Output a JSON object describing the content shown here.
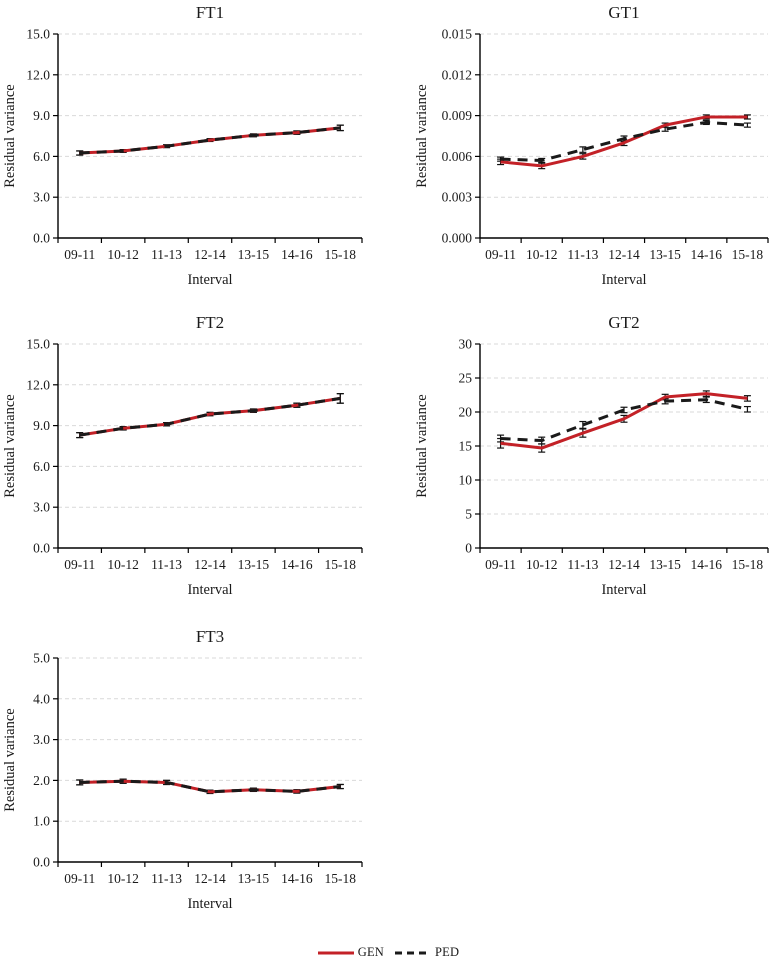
{
  "legend": {
    "items": [
      {
        "label": "GEN",
        "color": "#c32127",
        "style": "solid"
      },
      {
        "label": "PED",
        "color": "#1a1a1a",
        "style": "dashed"
      }
    ]
  },
  "chart_data": [
    {
      "id": "FT1",
      "type": "line",
      "title": "FT1",
      "xlabel": "Interval",
      "ylabel": "Residual variance",
      "categories": [
        "09-11",
        "10-12",
        "11-13",
        "12-14",
        "13-15",
        "14-16",
        "15-18"
      ],
      "ylim": [
        0,
        15
      ],
      "grid": "dashed-horizontal",
      "legend_position": "figure-bottom",
      "yticks": [
        {
          "v": 0,
          "label": "0.0"
        },
        {
          "v": 3,
          "label": "3.0"
        },
        {
          "v": 6,
          "label": "6.0"
        },
        {
          "v": 9,
          "label": "9.0"
        },
        {
          "v": 12,
          "label": "12.0"
        },
        {
          "v": 15,
          "label": "15.0"
        }
      ],
      "series": [
        {
          "name": "GEN",
          "color": "#c32127",
          "dash": "solid",
          "values": [
            6.25,
            6.4,
            6.75,
            7.2,
            7.55,
            7.75,
            8.1
          ],
          "errors": [
            0.15,
            0.1,
            0.1,
            0.1,
            0.1,
            0.12,
            0.2
          ]
        },
        {
          "name": "PED",
          "color": "#1a1a1a",
          "dash": "dashed",
          "values": [
            6.25,
            6.4,
            6.75,
            7.2,
            7.55,
            7.75,
            8.1
          ],
          "errors": [
            0.15,
            0.1,
            0.1,
            0.1,
            0.1,
            0.12,
            0.2
          ]
        }
      ]
    },
    {
      "id": "GT1",
      "type": "line",
      "title": "GT1",
      "xlabel": "Interval",
      "ylabel": "Residual variance",
      "categories": [
        "09-11",
        "10-12",
        "11-13",
        "12-14",
        "13-15",
        "14-16",
        "15-18"
      ],
      "ylim": [
        0,
        0.015
      ],
      "grid": "dashed-horizontal",
      "legend_position": "figure-bottom",
      "yticks": [
        {
          "v": 0,
          "label": "0.000"
        },
        {
          "v": 0.003,
          "label": "0.003"
        },
        {
          "v": 0.006,
          "label": "0.006"
        },
        {
          "v": 0.009,
          "label": "0.009"
        },
        {
          "v": 0.012,
          "label": "0.012"
        },
        {
          "v": 0.015,
          "label": "0.015"
        }
      ],
      "series": [
        {
          "name": "GEN",
          "color": "#c32127",
          "dash": "solid",
          "values": [
            0.0056,
            0.0053,
            0.006,
            0.007,
            0.0083,
            0.0089,
            0.0089
          ],
          "errors": [
            0.0002,
            0.0002,
            0.0002,
            0.0002,
            0.00015,
            0.00015,
            0.00015
          ]
        },
        {
          "name": "PED",
          "color": "#1a1a1a",
          "dash": "dashed",
          "values": [
            0.0058,
            0.0057,
            0.0065,
            0.0073,
            0.008,
            0.0085,
            0.0083
          ],
          "errors": [
            0.00015,
            0.00015,
            0.0002,
            0.0002,
            0.00015,
            0.00015,
            0.00015
          ]
        }
      ]
    },
    {
      "id": "FT2",
      "type": "line",
      "title": "FT2",
      "xlabel": "Interval",
      "ylabel": "Residual variance",
      "categories": [
        "09-11",
        "10-12",
        "11-13",
        "12-14",
        "13-15",
        "14-16",
        "15-18"
      ],
      "ylim": [
        0,
        15
      ],
      "grid": "dashed-horizontal",
      "legend_position": "figure-bottom",
      "yticks": [
        {
          "v": 0,
          "label": "0.0"
        },
        {
          "v": 3,
          "label": "3.0"
        },
        {
          "v": 6,
          "label": "6.0"
        },
        {
          "v": 9,
          "label": "9.0"
        },
        {
          "v": 12,
          "label": "12.0"
        },
        {
          "v": 15,
          "label": "15.0"
        }
      ],
      "series": [
        {
          "name": "GEN",
          "color": "#c32127",
          "dash": "solid",
          "values": [
            8.3,
            8.8,
            9.1,
            9.85,
            10.1,
            10.5,
            11.0
          ],
          "errors": [
            0.18,
            0.12,
            0.12,
            0.12,
            0.12,
            0.15,
            0.35
          ]
        },
        {
          "name": "PED",
          "color": "#1a1a1a",
          "dash": "dashed",
          "values": [
            8.3,
            8.8,
            9.1,
            9.85,
            10.1,
            10.5,
            11.0
          ],
          "errors": [
            0.18,
            0.12,
            0.12,
            0.12,
            0.12,
            0.15,
            0.35
          ]
        }
      ]
    },
    {
      "id": "GT2",
      "type": "line",
      "title": "GT2",
      "xlabel": "Interval",
      "ylabel": "Residual variance",
      "categories": [
        "09-11",
        "10-12",
        "11-13",
        "12-14",
        "13-15",
        "14-16",
        "15-18"
      ],
      "ylim": [
        0,
        30
      ],
      "grid": "dashed-horizontal",
      "legend_position": "figure-bottom",
      "yticks": [
        {
          "v": 0,
          "label": "0"
        },
        {
          "v": 5,
          "label": "5"
        },
        {
          "v": 10,
          "label": "10"
        },
        {
          "v": 15,
          "label": "15"
        },
        {
          "v": 20,
          "label": "20"
        },
        {
          "v": 25,
          "label": "25"
        },
        {
          "v": 30,
          "label": "30"
        }
      ],
      "series": [
        {
          "name": "GEN",
          "color": "#c32127",
          "dash": "solid",
          "values": [
            15.4,
            14.7,
            16.9,
            19.0,
            22.2,
            22.7,
            22.0
          ],
          "errors": [
            0.7,
            0.6,
            0.6,
            0.5,
            0.4,
            0.4,
            0.4
          ]
        },
        {
          "name": "PED",
          "color": "#1a1a1a",
          "dash": "dashed",
          "values": [
            16.1,
            15.8,
            18.1,
            20.3,
            21.6,
            21.8,
            20.4
          ],
          "errors": [
            0.5,
            0.5,
            0.5,
            0.4,
            0.4,
            0.4,
            0.4
          ]
        }
      ]
    },
    {
      "id": "FT3",
      "type": "line",
      "title": "FT3",
      "xlabel": "Interval",
      "ylabel": "Residual variance",
      "categories": [
        "09-11",
        "10-12",
        "11-13",
        "12-14",
        "13-15",
        "14-16",
        "15-18"
      ],
      "ylim": [
        0,
        5
      ],
      "grid": "dashed-horizontal",
      "legend_position": "figure-bottom",
      "yticks": [
        {
          "v": 0,
          "label": "0.0"
        },
        {
          "v": 1,
          "label": "1.0"
        },
        {
          "v": 2,
          "label": "2.0"
        },
        {
          "v": 3,
          "label": "3.0"
        },
        {
          "v": 4,
          "label": "4.0"
        },
        {
          "v": 5,
          "label": "5.0"
        }
      ],
      "series": [
        {
          "name": "GEN",
          "color": "#c32127",
          "dash": "solid",
          "values": [
            1.95,
            1.98,
            1.95,
            1.72,
            1.77,
            1.73,
            1.85
          ],
          "errors": [
            0.06,
            0.05,
            0.05,
            0.04,
            0.04,
            0.04,
            0.05
          ]
        },
        {
          "name": "PED",
          "color": "#1a1a1a",
          "dash": "dashed",
          "values": [
            1.95,
            1.98,
            1.95,
            1.72,
            1.77,
            1.73,
            1.85
          ],
          "errors": [
            0.06,
            0.05,
            0.05,
            0.04,
            0.04,
            0.04,
            0.05
          ]
        }
      ]
    }
  ]
}
